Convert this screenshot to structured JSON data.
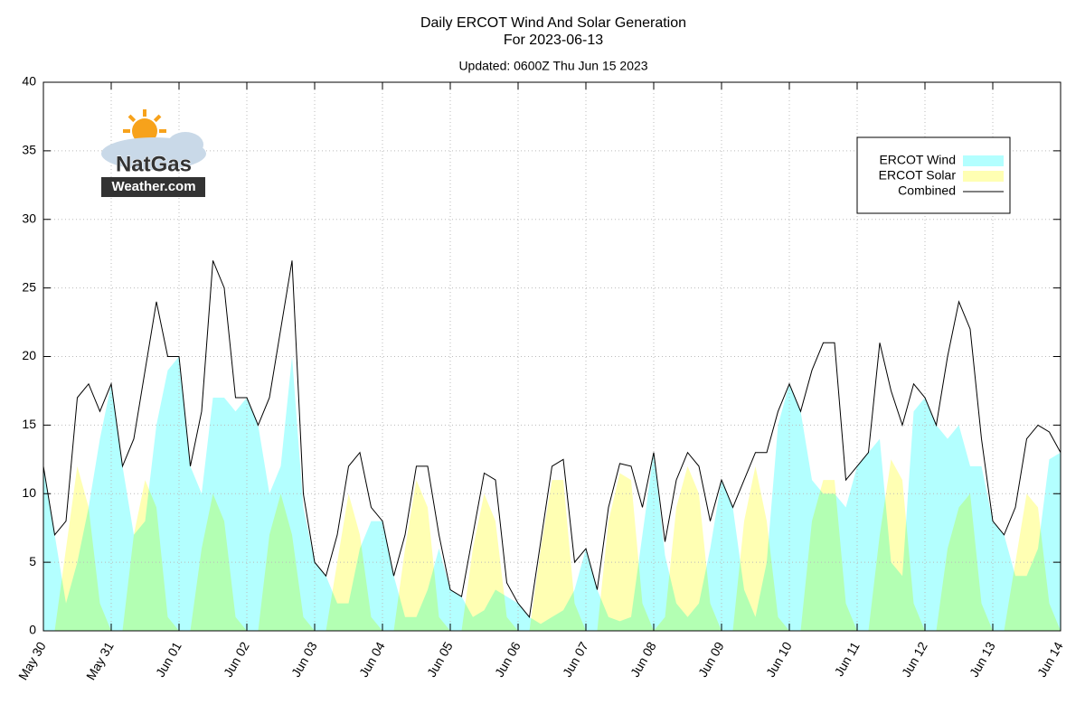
{
  "chart_data": {
    "type": "area",
    "title": "Daily ERCOT Wind And Solar Generation",
    "subtitle": "For 2023-06-13",
    "note": "Updated: 0600Z Thu Jun 15 2023",
    "logo": {
      "line1": "NatGas",
      "line2": "Weather.com"
    },
    "categories": [
      "May 30",
      null,
      null,
      null,
      null,
      null,
      "May 31",
      null,
      null,
      null,
      null,
      null,
      "Jun 01",
      null,
      null,
      null,
      null,
      null,
      "Jun 02",
      null,
      null,
      null,
      null,
      null,
      "Jun 03",
      null,
      null,
      null,
      null,
      null,
      "Jun 04",
      null,
      null,
      null,
      null,
      null,
      "Jun 05",
      null,
      null,
      null,
      null,
      null,
      "Jun 06",
      null,
      null,
      null,
      null,
      null,
      "Jun 07",
      null,
      null,
      null,
      null,
      null,
      "Jun 08",
      null,
      null,
      null,
      null,
      null,
      "Jun 09",
      null,
      null,
      null,
      null,
      null,
      "Jun 10",
      null,
      null,
      null,
      null,
      null,
      "Jun 11",
      null,
      null,
      null,
      null,
      null,
      "Jun 12",
      null,
      null,
      null,
      null,
      null,
      "Jun 13",
      null,
      null,
      null,
      null,
      null,
      "Jun 14"
    ],
    "series": [
      {
        "name": "ERCOT Wind",
        "color": "#b3ffff",
        "kind": "area",
        "values": [
          12,
          7,
          2,
          5,
          9,
          14,
          18,
          12,
          7,
          8,
          15,
          19,
          20,
          12,
          10,
          17,
          17,
          16,
          17,
          15,
          10,
          12,
          20,
          9,
          5,
          4,
          2,
          2,
          6,
          8,
          8,
          4,
          1,
          1,
          3,
          6,
          3,
          2.5,
          1,
          1.5,
          3,
          2.5,
          2,
          1,
          0.5,
          1,
          1.5,
          3,
          6,
          3,
          1,
          0.7,
          1,
          7,
          13,
          5.5,
          2,
          1,
          2,
          6,
          11,
          9,
          3,
          1,
          5,
          15,
          18,
          16,
          11,
          10,
          10,
          9,
          12,
          13,
          14,
          5,
          4,
          16,
          17,
          15,
          14,
          15,
          12,
          12,
          8,
          7,
          4,
          4,
          6,
          12.5,
          13
        ]
      },
      {
        "name": "ERCOT Solar",
        "color": "#ffffb3",
        "kind": "area",
        "values": [
          0,
          0,
          6,
          12,
          9,
          2,
          0,
          0,
          7,
          11,
          9,
          1,
          0,
          0,
          6,
          10,
          8,
          1,
          0,
          0,
          7,
          10,
          7,
          1,
          0,
          0,
          5,
          10,
          7,
          1,
          0,
          0,
          6,
          11,
          9,
          1,
          0,
          0,
          6,
          10,
          8,
          1,
          0,
          0,
          6,
          11,
          11,
          2,
          0,
          0,
          8,
          11.5,
          11,
          2,
          0,
          1,
          9,
          12,
          10,
          2,
          0,
          0,
          8,
          12,
          8,
          1,
          0,
          0,
          8,
          11,
          11,
          2,
          0,
          0,
          7,
          12.5,
          11,
          2,
          0,
          0,
          6,
          9,
          10,
          2,
          0,
          0,
          5,
          10,
          9,
          2,
          0
        ]
      },
      {
        "name": "Combined",
        "color": "#000000",
        "kind": "line",
        "values": [
          12,
          7,
          8,
          17,
          18,
          16,
          18,
          12,
          14,
          19,
          24,
          20,
          20,
          12,
          16,
          27,
          25,
          17,
          17,
          15,
          17,
          22,
          27,
          10,
          5,
          4,
          7,
          12,
          13,
          9,
          8,
          4,
          7,
          12,
          12,
          7,
          3,
          2.5,
          7,
          11.5,
          11,
          3.5,
          2,
          1,
          6.5,
          12,
          12.5,
          5,
          6,
          3,
          9,
          12.2,
          12,
          9,
          13,
          6.5,
          11,
          13,
          12,
          8,
          11,
          9,
          11,
          13,
          13,
          16,
          18,
          16,
          19,
          21,
          21,
          11,
          12,
          13,
          21,
          17.5,
          15,
          18,
          17,
          15,
          20,
          24,
          22,
          14,
          8,
          7,
          9,
          14,
          15,
          14.5,
          13
        ]
      }
    ],
    "ylim": [
      0,
      40
    ],
    "yticks": [
      0,
      5,
      10,
      15,
      20,
      25,
      30,
      35,
      40
    ],
    "grid": true,
    "legend": "upper right"
  }
}
